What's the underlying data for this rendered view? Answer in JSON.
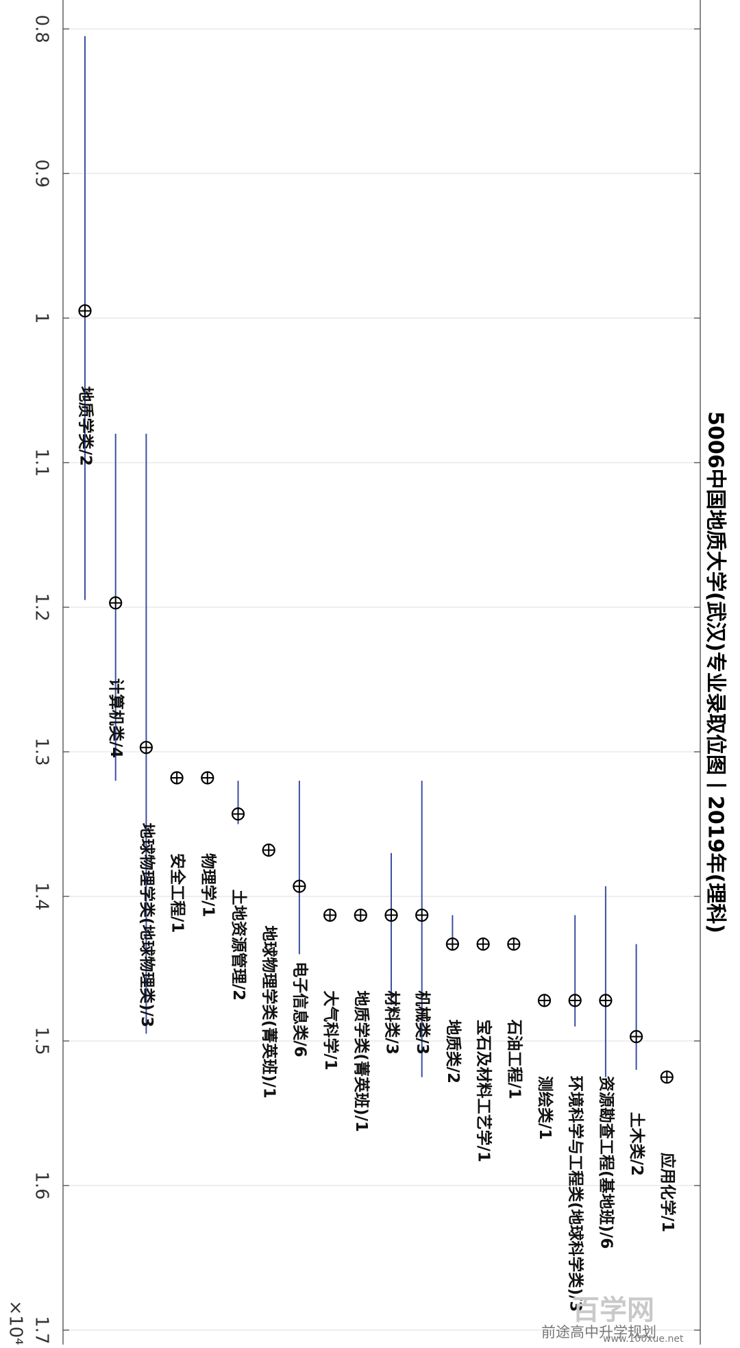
{
  "chart_data": {
    "type": "scatter",
    "title": "5006中国地质大学(武汉)专业录取位图丨2019年(理科)",
    "value_axis": {
      "ticks": [
        "0.8",
        "0.9",
        "1",
        "1.1",
        "1.2",
        "1.3",
        "1.4",
        "1.5",
        "1.6",
        "1.7"
      ],
      "tick_values": [
        0.8,
        0.9,
        1.0,
        1.1,
        1.2,
        1.3,
        1.4,
        1.5,
        1.6,
        1.7
      ],
      "range": [
        0.78,
        1.71
      ],
      "multiplier_label": "×10⁴"
    },
    "grid": true,
    "line_color": "#3b4fa0",
    "marker": "circle-plus",
    "points": [
      {
        "label": "地质学类/2",
        "value": 0.995,
        "range": [
          0.805,
          1.195
        ]
      },
      {
        "label": "计算机类/4",
        "value": 1.197,
        "range": [
          1.08,
          1.32
        ]
      },
      {
        "label": "地球物理学类(地球物理类)/3",
        "value": 1.297,
        "range": [
          1.08,
          1.495
        ]
      },
      {
        "label": "安全工程/1",
        "value": 1.318,
        "range": null
      },
      {
        "label": "物理学/1",
        "value": 1.318,
        "range": null
      },
      {
        "label": "土地资源管理/2",
        "value": 1.343,
        "range": [
          1.32,
          1.35
        ]
      },
      {
        "label": "地球物理学类(菁英班)/1",
        "value": 1.368,
        "range": null
      },
      {
        "label": "电子信息类/6",
        "value": 1.393,
        "range": [
          1.32,
          1.44
        ]
      },
      {
        "label": "大气科学/1",
        "value": 1.413,
        "range": null
      },
      {
        "label": "地质学类(菁英班)/1",
        "value": 1.413,
        "range": null
      },
      {
        "label": "材料类/3",
        "value": 1.413,
        "range": [
          1.37,
          1.475
        ]
      },
      {
        "label": "机械类/3",
        "value": 1.413,
        "range": [
          1.32,
          1.525
        ]
      },
      {
        "label": "地质类/2",
        "value": 1.433,
        "range": [
          1.413,
          1.433
        ]
      },
      {
        "label": "宝石及材料工艺学/1",
        "value": 1.433,
        "range": null
      },
      {
        "label": "石油工程/1",
        "value": 1.433,
        "range": null
      },
      {
        "label": "测绘类/1",
        "value": 1.472,
        "range": null
      },
      {
        "label": "环境科学与工程类(地球科学类)/3",
        "value": 1.472,
        "range": [
          1.413,
          1.49
        ]
      },
      {
        "label": "资源勘查工程(基地班)/6",
        "value": 1.472,
        "range": [
          1.393,
          1.525
        ]
      },
      {
        "label": "土木类/2",
        "value": 1.497,
        "range": [
          1.433,
          1.52
        ]
      },
      {
        "label": "应用化学/1",
        "value": 1.525,
        "range": null
      }
    ]
  },
  "watermark": {
    "brand": "百学网",
    "account": "前途高中升学规划",
    "url": "www.100xue.net"
  }
}
